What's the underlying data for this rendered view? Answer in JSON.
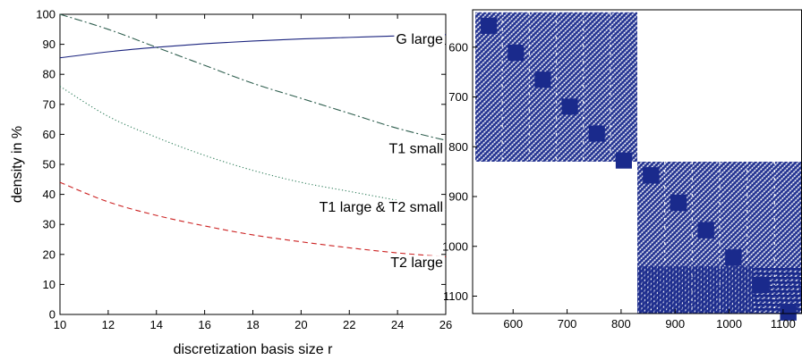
{
  "chart_data": [
    {
      "type": "line",
      "xlabel": "discretization basis size r",
      "ylabel": "density in %",
      "xlim": [
        10,
        26
      ],
      "ylim": [
        0,
        100
      ],
      "xticks": [
        10,
        12,
        14,
        16,
        18,
        20,
        22,
        24,
        26
      ],
      "yticks": [
        0,
        10,
        20,
        30,
        40,
        50,
        60,
        70,
        80,
        90,
        100
      ],
      "grid": false,
      "legend": "none",
      "series": [
        {
          "name": "G large",
          "color": "#1a237e",
          "style": "solid",
          "x": [
            10,
            12,
            14,
            16,
            18,
            20,
            22,
            24,
            26
          ],
          "y": [
            85.5,
            87.5,
            89.0,
            90.2,
            91.1,
            91.8,
            92.3,
            92.8,
            93.2
          ]
        },
        {
          "name": "T1 small",
          "color": "#2e5e4e",
          "style": "dashdot",
          "x": [
            10,
            12,
            14,
            16,
            18,
            20,
            22,
            24,
            26
          ],
          "y": [
            100,
            95,
            89,
            83,
            77,
            72,
            67,
            62,
            58
          ]
        },
        {
          "name": "T1 large & T2 small",
          "color": "#2e7d5a",
          "style": "dotted",
          "x": [
            10,
            12,
            14,
            16,
            18,
            20,
            22,
            24,
            26
          ],
          "y": [
            76,
            66,
            59,
            53,
            48,
            44,
            41,
            38,
            35
          ]
        },
        {
          "name": "T2 large",
          "color": "#cc2222",
          "style": "dashed",
          "x": [
            10,
            12,
            14,
            16,
            18,
            20,
            22,
            24,
            26
          ],
          "y": [
            44,
            37.5,
            33,
            29.5,
            26.5,
            24.2,
            22.2,
            20.5,
            19.2
          ]
        }
      ],
      "annotations": [
        {
          "text": "G large",
          "x": 24.6,
          "y": 92
        },
        {
          "text": "T1 small",
          "x": 24.9,
          "y": 55.5
        },
        {
          "text": "T1 large & T2 small",
          "x": 22.8,
          "y": 36
        },
        {
          "text": "T2 large",
          "x": 24.3,
          "y": 17.5
        }
      ]
    },
    {
      "type": "heatmap",
      "description_kind": "sparsity pattern",
      "color": "#1a2a8c",
      "xlim": [
        525,
        1135
      ],
      "ylim": [
        1135,
        525
      ],
      "xticks": [
        600,
        700,
        800,
        900,
        1000,
        1100
      ],
      "yticks": [
        600,
        700,
        800,
        900,
        1000,
        1100
      ],
      "blocks": [
        {
          "x0": 530,
          "x1": 830,
          "y0": 530,
          "y1": 830
        },
        {
          "x0": 830,
          "x1": 1135,
          "y0": 830,
          "y1": 1135
        }
      ]
    }
  ]
}
